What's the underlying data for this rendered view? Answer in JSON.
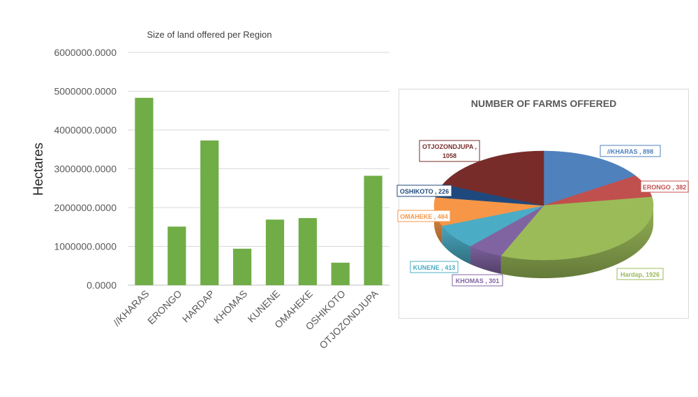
{
  "chart_data": [
    {
      "type": "bar",
      "title": "Size of land offered per Region",
      "ylabel": "Hectares",
      "xlabel": "",
      "ylim": [
        0,
        6000000
      ],
      "yticks": [
        "0.0000",
        "1000000.0000",
        "2000000.0000",
        "3000000.0000",
        "4000000.0000",
        "5000000.0000",
        "6000000.0000"
      ],
      "grid": true,
      "categories": [
        "//KHARAS",
        "ERONGO",
        "HARDAP",
        "KHOMAS",
        "KUNENE",
        "OMAHEKE",
        "OSHIKOTO",
        "OTJOZONDJUPA"
      ],
      "values": [
        4830000,
        1510000,
        3730000,
        940000,
        1690000,
        1730000,
        580000,
        2820000
      ],
      "color": "#70ad47"
    },
    {
      "type": "pie",
      "title": "NUMBER OF FARMS OFFERED",
      "slices": [
        {
          "label": "//KHARAS , 898",
          "value": 898,
          "color": "#4f81bd"
        },
        {
          "label": "ERONGO , 382",
          "value": 382,
          "color": "#c0504d"
        },
        {
          "label": "Hardap, 1926",
          "value": 1926,
          "color": "#9bbb59"
        },
        {
          "label": "KHOMAS , 301",
          "value": 301,
          "color": "#8064a2"
        },
        {
          "label": "KUNENE , 413",
          "value": 413,
          "color": "#4bacc6"
        },
        {
          "label": "OMAHEKE , 484",
          "value": 484,
          "color": "#f79646"
        },
        {
          "label": "OSHIKOTO , 226",
          "value": 226,
          "color": "#1f497d"
        },
        {
          "label": "OTJOZONDJUPA , 1058",
          "value": 1058,
          "color": "#772c2a"
        }
      ]
    }
  ]
}
